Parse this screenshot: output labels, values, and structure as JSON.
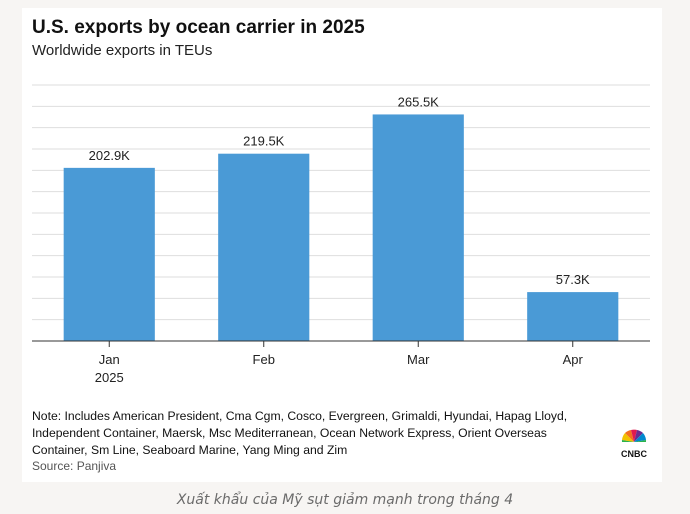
{
  "header": {
    "title": "U.S. exports by ocean carrier in 2025",
    "subtitle": "Worldwide exports in TEUs"
  },
  "chart_data": {
    "type": "bar",
    "title": "U.S. exports by ocean carrier in 2025",
    "subtitle": "Worldwide exports in TEUs",
    "categories": [
      "Jan",
      "Feb",
      "Mar",
      "Apr"
    ],
    "category_sublabels": [
      "2025",
      "",
      "",
      ""
    ],
    "values": [
      202900,
      219500,
      265500,
      57300
    ],
    "data_labels": [
      "202.9K",
      "219.5K",
      "265.5K",
      "57.3K"
    ],
    "xlabel": "",
    "ylabel": "",
    "ylim": [
      0,
      300000
    ],
    "grid": true,
    "bar_color": "#4a9ad6"
  },
  "footer": {
    "note": "Note: Includes American President, Cma Cgm, Cosco, Evergreen, Grimaldi, Hyundai, Hapag Lloyd, Independent Container, Maersk, Msc Mediterranean, Ocean Network Express, Orient Overseas Container, Sm Line, Seaboard Marine, Yang Ming and Zim",
    "source": "Source: Panjiva",
    "logo_text": "CNBC"
  },
  "caption": "Xuất khẩu của Mỹ sụt giảm mạnh trong tháng 4"
}
